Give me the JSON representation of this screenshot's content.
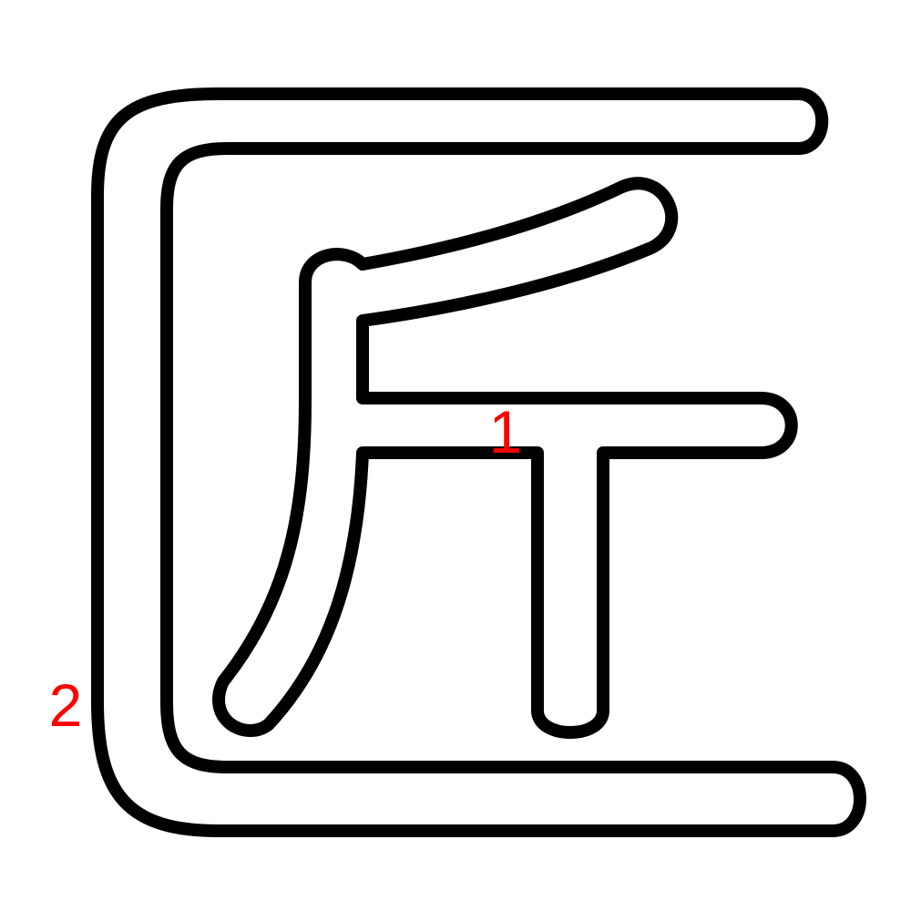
{
  "glyph": {
    "character": "匠",
    "outline_color": "#000000",
    "fill_color": "#ffffff",
    "background_color": "#ffffff"
  },
  "stroke_order": {
    "label_color": "#ff0000",
    "labels": [
      {
        "number": "1",
        "stroke": "jin-component"
      },
      {
        "number": "2",
        "stroke": "enclosure-frame"
      }
    ]
  }
}
